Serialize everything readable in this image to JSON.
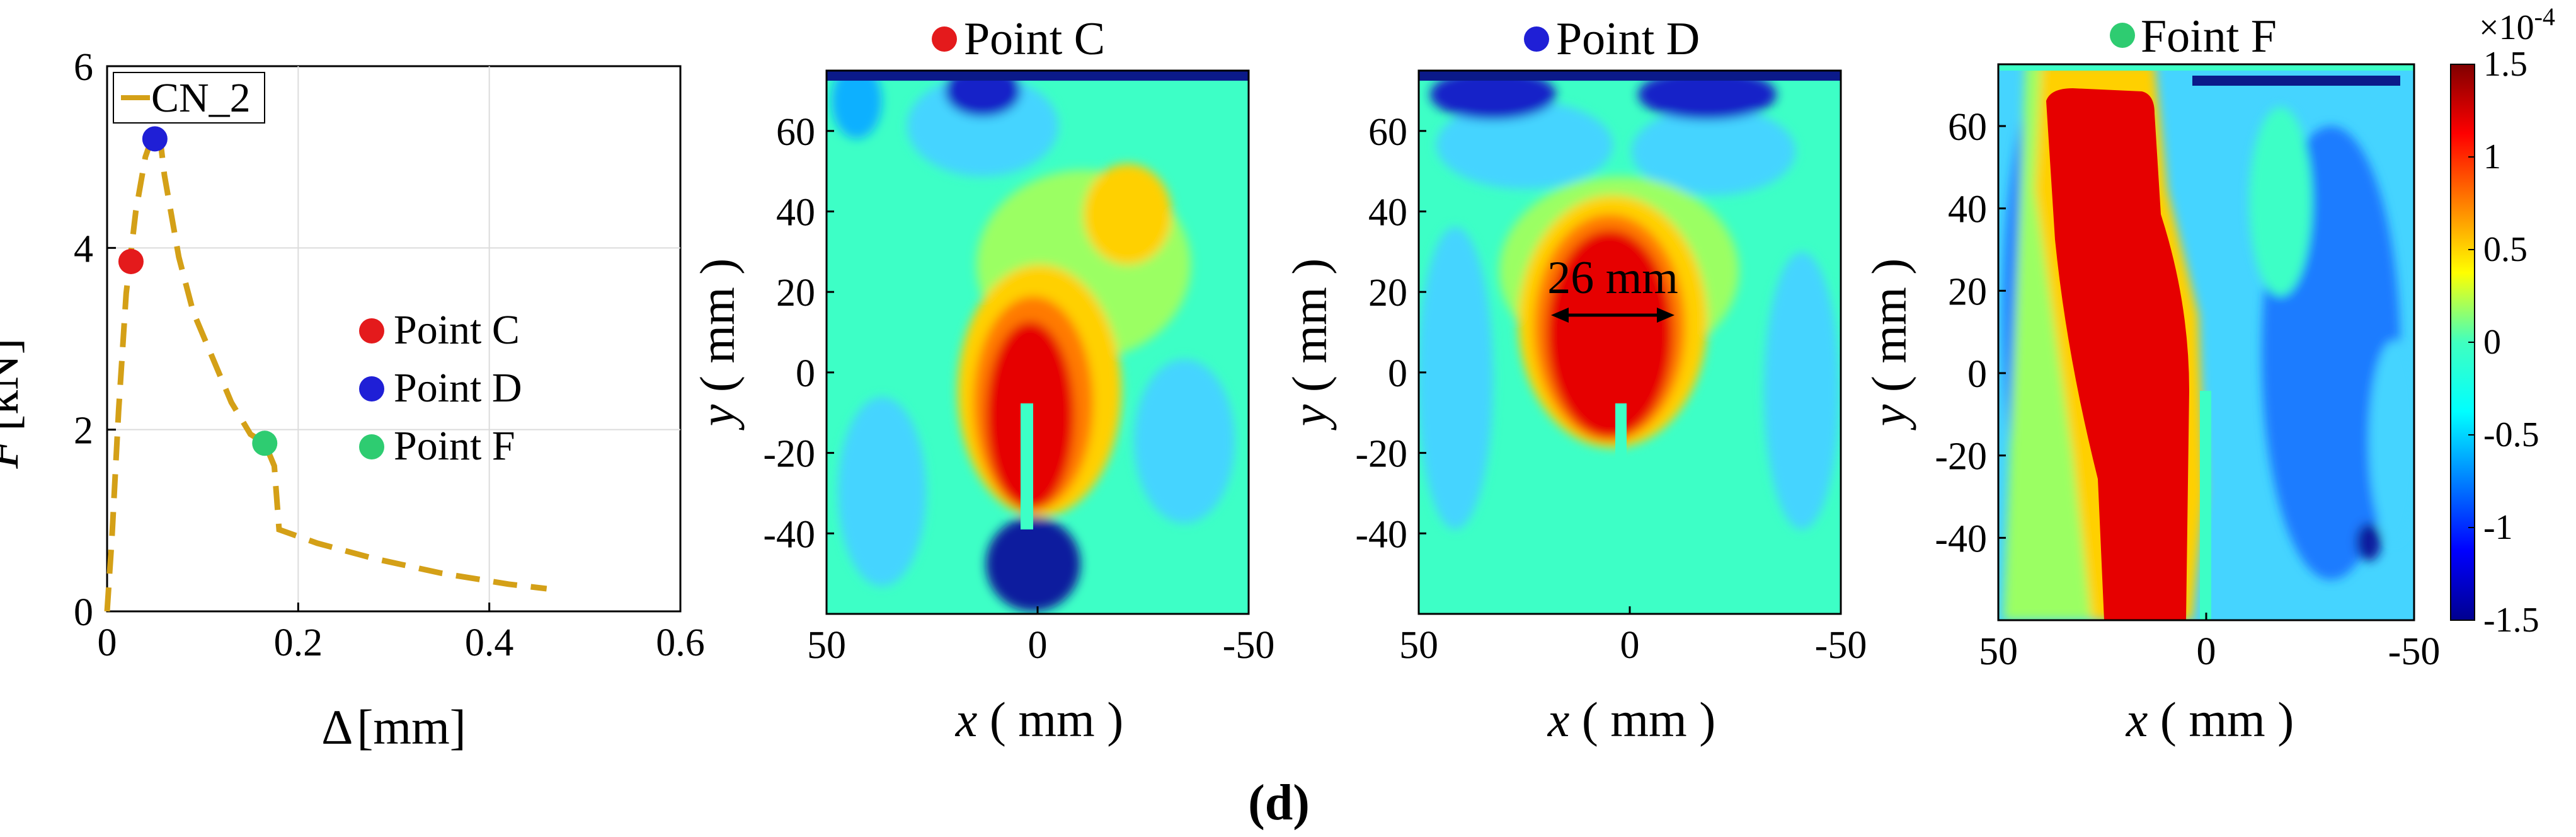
{
  "figure": {
    "panel_label": "(d)"
  },
  "chart_data": [
    {
      "type": "line",
      "ylabel_symbol": "F",
      "ylabel_unit": "[kN]",
      "xlabel_symbol": "Δ",
      "xlabel_unit": "[mm]",
      "xlim": [
        0,
        0.6
      ],
      "ylim": [
        0,
        6
      ],
      "xticks": [
        0,
        0.2,
        0.4,
        0.6
      ],
      "xtick_labels": [
        "0",
        "0.2",
        "0.4",
        "0.6"
      ],
      "yticks": [
        0,
        2,
        4,
        6
      ],
      "ytick_labels": [
        "0",
        "2",
        "4",
        "6"
      ],
      "grid": true,
      "series": [
        {
          "name": "CN_2",
          "color": "#d4a017",
          "style": "dashed",
          "x": [
            0,
            0.005,
            0.012,
            0.02,
            0.03,
            0.04,
            0.05,
            0.055,
            0.06,
            0.075,
            0.09,
            0.11,
            0.13,
            0.15,
            0.165,
            0.175,
            0.18,
            0.22,
            0.28,
            0.35,
            0.42,
            0.46
          ],
          "y": [
            0,
            0.8,
            2.2,
            3.5,
            4.4,
            5.0,
            5.3,
            5.25,
            4.8,
            3.9,
            3.3,
            2.8,
            2.3,
            1.95,
            1.85,
            1.6,
            0.9,
            0.75,
            0.58,
            0.42,
            0.3,
            0.25
          ]
        }
      ],
      "points": [
        {
          "name": "Point C",
          "x": 0.025,
          "y": 3.85,
          "color": "#e41a1c"
        },
        {
          "name": "Point D",
          "x": 0.05,
          "y": 5.2,
          "color": "#1f1fd6"
        },
        {
          "name": "Point F",
          "x": 0.165,
          "y": 1.85,
          "color": "#2ecc71"
        }
      ],
      "legend": {
        "line": "CN_2",
        "points": [
          "Point C",
          "Point D",
          "Point F"
        ]
      }
    },
    {
      "type": "heatmap",
      "title": "Point C",
      "marker_color": "#e41a1c",
      "xlabel": "x ( mm )",
      "ylabel": "y ( mm )",
      "xlim": [
        50,
        -50
      ],
      "ylim": [
        -60,
        75
      ],
      "xticks": [
        50,
        0,
        -50
      ],
      "xtick_labels": [
        "50",
        "0",
        "-50"
      ],
      "yticks": [
        60,
        40,
        20,
        0,
        -20,
        -40
      ],
      "ytick_labels": [
        "60",
        "40",
        "20",
        "0",
        "-20",
        "-40"
      ],
      "field": "strain contour, red zone above crack tip, blue zone at notch"
    },
    {
      "type": "heatmap",
      "title": "Point D",
      "marker_color": "#1f1fd6",
      "xlabel": "x ( mm )",
      "ylabel": "y ( mm )",
      "xlim": [
        50,
        -50
      ],
      "ylim": [
        -60,
        75
      ],
      "xticks": [
        50,
        0,
        -50
      ],
      "xtick_labels": [
        "50",
        "0",
        "-50"
      ],
      "yticks": [
        60,
        40,
        20,
        0,
        -20,
        -40
      ],
      "ytick_labels": [
        "60",
        "40",
        "20",
        "0",
        "-20",
        "-40"
      ],
      "annotation": "26 mm"
    },
    {
      "type": "heatmap",
      "title": "Foint F",
      "marker_color": "#2ecc71",
      "xlabel": "x ( mm )",
      "ylabel": "y ( mm )",
      "xlim": [
        50,
        -50
      ],
      "ylim": [
        -60,
        75
      ],
      "xticks": [
        50,
        0,
        -50
      ],
      "xtick_labels": [
        "50",
        "0",
        "-50"
      ],
      "yticks": [
        60,
        40,
        20,
        0,
        -20,
        -40
      ],
      "ytick_labels": [
        "60",
        "40",
        "20",
        "0",
        "-20",
        "-40"
      ]
    }
  ],
  "colorbar": {
    "exponent": "×10",
    "exponent_power": "-4",
    "range": [
      -1.5,
      1.5
    ],
    "ticks": [
      1.5,
      1,
      0.5,
      0,
      -0.5,
      -1,
      -1.5
    ],
    "tick_labels": [
      "1.5",
      "1",
      "0.5",
      "0",
      "-0.5",
      "-1",
      "-1.5"
    ],
    "colors": [
      "#00008f",
      "#0000ff",
      "#0080ff",
      "#00ffff",
      "#80ff80",
      "#ffff00",
      "#ff8000",
      "#ff0000",
      "#800000"
    ]
  }
}
